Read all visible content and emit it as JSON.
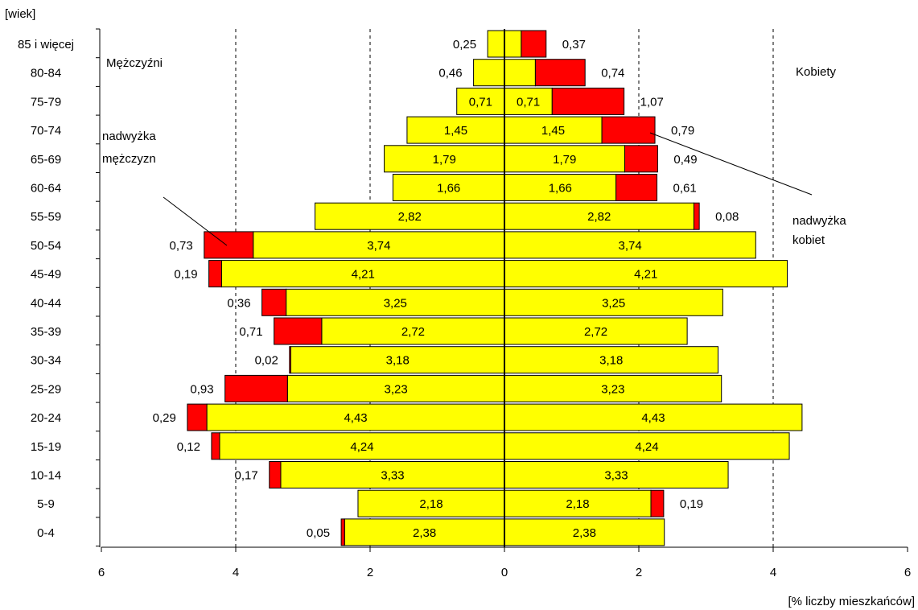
{
  "chart_data": {
    "type": "bar",
    "subtype": "population-pyramid",
    "y_axis_label": "[wiek]",
    "x_axis_label": "[% liczby mieszkańców]",
    "x_ticks": [
      "6",
      "4",
      "2",
      "0",
      "2",
      "4",
      "6"
    ],
    "xlim": [
      -6,
      6
    ],
    "grid": "vertical dashed at 2, 4",
    "categories": [
      "85 i więcej",
      "80-84",
      "75-79",
      "70-74",
      "65-69",
      "60-64",
      "55-59",
      "50-54",
      "45-49",
      "40-44",
      "35-39",
      "30-34",
      "25-29",
      "20-24",
      "15-19",
      "10-14",
      "5-9",
      "0-4"
    ],
    "common": [
      0.25,
      0.46,
      0.71,
      1.45,
      1.79,
      1.66,
      2.82,
      3.74,
      4.21,
      3.25,
      2.72,
      3.18,
      3.23,
      4.43,
      4.24,
      3.33,
      2.18,
      2.38
    ],
    "common_labels": [
      "",
      "",
      "0,71",
      "1,45",
      "1,79",
      "1,66",
      "2,82",
      "3,74",
      "4,21",
      "3,25",
      "2,72",
      "3,18",
      "3,23",
      "4,43",
      "4,24",
      "3,33",
      "2,18",
      "2,38"
    ],
    "male_excess": [
      0,
      0,
      0,
      0,
      0,
      0,
      0,
      0.73,
      0.19,
      0.36,
      0.71,
      0.02,
      0.93,
      0.29,
      0.12,
      0.17,
      0,
      0.05
    ],
    "male_excess_labels": [
      "0,25",
      "0,46",
      "",
      "",
      "",
      "",
      "",
      "0,73",
      "0,19",
      "0,36",
      "0,71",
      "0,02",
      "0,93",
      "0,29",
      "0,12",
      "0,17",
      "",
      "0,05"
    ],
    "female_excess": [
      0.37,
      0.74,
      1.07,
      0.79,
      0.49,
      0.61,
      0.08,
      0,
      0,
      0,
      0,
      0,
      0,
      0,
      0,
      0,
      0.19,
      0
    ],
    "female_excess_labels": [
      "0,37",
      "0,74",
      "1,07",
      "0,79",
      "0,49",
      "0,61",
      "0,08",
      "",
      "",
      "",
      "",
      "",
      "",
      "",
      "",
      "",
      "0,19",
      ""
    ],
    "colors": {
      "common": "#ffff00",
      "excess": "#ff0000",
      "outline": "#000000"
    },
    "annotations": {
      "left_title": "Mężczyźni",
      "right_title": "Kobiety",
      "male_excess_note": [
        "nadwyżka",
        "mężczyzn"
      ],
      "female_excess_note": [
        "nadwyżka",
        "kobiet"
      ]
    }
  }
}
